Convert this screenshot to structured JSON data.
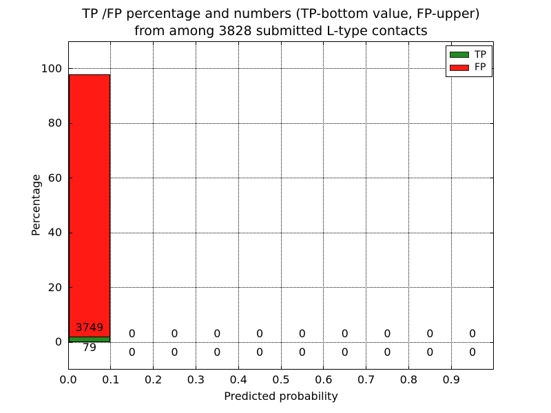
{
  "title": {
    "line1": "TP /FP percentage and numbers (TP-bottom value, FP-upper)",
    "line2": "from among 3828 submitted L-type contacts"
  },
  "axes": {
    "xlabel": "Predicted probability",
    "ylabel": "Percentage"
  },
  "legend": {
    "entries": [
      {
        "label": "TP",
        "color": "#228b22"
      },
      {
        "label": "FP",
        "color": "#ff1a14"
      }
    ]
  },
  "colors": {
    "tp_green": "#228b22",
    "fp_red": "#ff1a14",
    "grid": "#000000",
    "background": "#ffffff",
    "text": "#000000"
  },
  "chart_data": {
    "type": "bar",
    "title": "TP /FP percentage and numbers (TP-bottom value, FP-upper) from among 3828 submitted L-type contacts",
    "xlabel": "Predicted probability",
    "ylabel": "Percentage",
    "xlim": [
      0.0,
      1.0
    ],
    "ylim": [
      -10,
      110
    ],
    "yticks": [
      0,
      20,
      40,
      60,
      80,
      100
    ],
    "xtick_labels": [
      "0.0",
      "0.1",
      "0.2",
      "0.3",
      "0.4",
      "0.5",
      "0.6",
      "0.7",
      "0.8",
      "0.9"
    ],
    "grid": true,
    "legend_position": "upper right",
    "total_submitted": 3828,
    "bin_edges": [
      0.0,
      0.1,
      0.2,
      0.3,
      0.4,
      0.5,
      0.6,
      0.7,
      0.8,
      0.9,
      1.0
    ],
    "series": [
      {
        "name": "TP",
        "color": "#228b22",
        "counts": [
          79,
          0,
          0,
          0,
          0,
          0,
          0,
          0,
          0,
          0
        ],
        "percentages": [
          2.06,
          0,
          0,
          0,
          0,
          0,
          0,
          0,
          0,
          0
        ]
      },
      {
        "name": "FP",
        "color": "#ff1a14",
        "counts": [
          3749,
          0,
          0,
          0,
          0,
          0,
          0,
          0,
          0,
          0
        ],
        "percentages": [
          97.94,
          0,
          0,
          0,
          0,
          0,
          0,
          0,
          0,
          0
        ]
      }
    ]
  }
}
